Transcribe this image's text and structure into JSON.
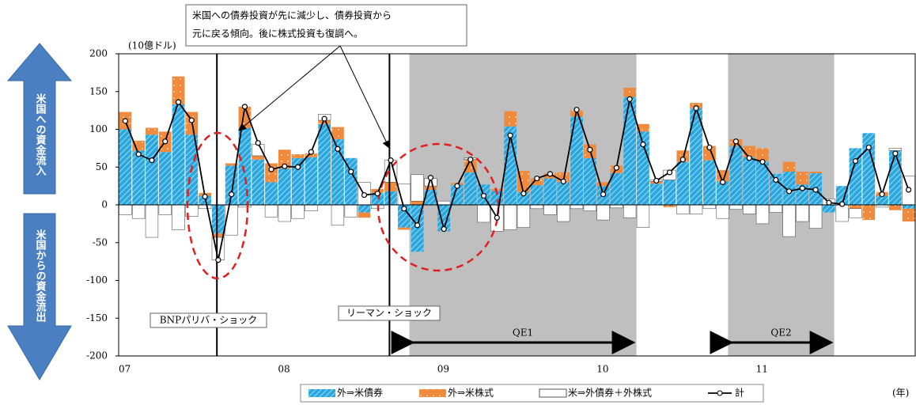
{
  "chart_data": {
    "type": "bar",
    "unit_label": "(10億ドル)",
    "x_unit_label": "(年)",
    "side_labels": [
      "米国への資金流入",
      "米国からの資金流出"
    ],
    "callout": [
      "米国への債券投資が先に減少し、債券投資から",
      "元に戻る傾向。後に株式投資も復調へ。"
    ],
    "annotations": [
      "BNPパリバ・ショック",
      "リーマン・ショック",
      "QE1",
      "QE2"
    ],
    "categories": [
      "07",
      null,
      null,
      null,
      null,
      null,
      null,
      null,
      null,
      null,
      null,
      null,
      "08",
      null,
      null,
      null,
      null,
      null,
      null,
      null,
      null,
      null,
      null,
      null,
      "09",
      null,
      null,
      null,
      null,
      null,
      null,
      null,
      null,
      null,
      null,
      null,
      "10",
      null,
      null,
      null,
      null,
      null,
      null,
      null,
      null,
      null,
      null,
      null,
      "11",
      null,
      null,
      null,
      null,
      null,
      null,
      null,
      null,
      null,
      null,
      null
    ],
    "series": [
      {
        "name": "外⇒米債券",
        "color": "#2aa7df",
        "values": [
          100,
          72,
          93,
          70,
          133,
          93,
          12,
          -38,
          52,
          102,
          60,
          30,
          48,
          62,
          63,
          107,
          87,
          62,
          -10,
          16,
          18,
          -30,
          -62,
          20,
          -35,
          27,
          43,
          27,
          19,
          104,
          17,
          26,
          35,
          30,
          117,
          62,
          25,
          42,
          143,
          97,
          28,
          33,
          57,
          128,
          59,
          31,
          78,
          63,
          58,
          41,
          44,
          27,
          42,
          -10,
          25,
          75,
          95,
          12,
          72,
          -5
        ]
      },
      {
        "name": "外⇒米株式",
        "color": "#f08a3c",
        "values": [
          23,
          13,
          9,
          27,
          37,
          30,
          4,
          -5,
          3,
          28,
          5,
          25,
          25,
          5,
          5,
          5,
          16,
          0,
          -7,
          5,
          12,
          -3,
          5,
          5,
          0,
          2,
          17,
          0,
          2,
          20,
          28,
          9,
          7,
          13,
          8,
          18,
          5,
          10,
          12,
          10,
          3,
          -3,
          15,
          7,
          19,
          15,
          9,
          15,
          17,
          0,
          13,
          17,
          2,
          0,
          0,
          -5,
          -20,
          5,
          -7,
          -17
        ]
      },
      {
        "name": "米⇒外債券＋外株式",
        "color": "#ffffff",
        "values": [
          -13,
          -18,
          -43,
          -13,
          -33,
          -15,
          -5,
          -30,
          -40,
          -3,
          15,
          -16,
          -22,
          -18,
          -8,
          8,
          -27,
          -16,
          30,
          -5,
          29,
          28,
          35,
          10,
          5,
          0,
          2,
          -23,
          -35,
          -33,
          -30,
          -5,
          -13,
          -22,
          -5,
          -8,
          -20,
          -4,
          -17,
          -30,
          2,
          13,
          -12,
          -12,
          -5,
          -18,
          -6,
          -12,
          -25,
          -10,
          -42,
          -22,
          -31,
          8,
          -22,
          -12,
          0,
          -3,
          3,
          38
        ]
      },
      {
        "name": "計",
        "type": "line",
        "color": "#000000",
        "values": [
          111,
          67,
          59,
          84,
          136,
          112,
          11,
          -73,
          14,
          130,
          82,
          47,
          51,
          50,
          70,
          114,
          74,
          44,
          13,
          15,
          59,
          -5,
          -27,
          36,
          -32,
          25,
          60,
          12,
          -17,
          92,
          15,
          35,
          41,
          31,
          126,
          73,
          14,
          49,
          140,
          80,
          32,
          43,
          60,
          128,
          76,
          30,
          84,
          62,
          57,
          33,
          18,
          22,
          20,
          3,
          1,
          58,
          76,
          14,
          68,
          20
        ]
      }
    ],
    "ylim": [
      -200,
      200
    ],
    "yticks": [
      -200,
      -150,
      -100,
      -50,
      0,
      50,
      100,
      150,
      200
    ]
  }
}
